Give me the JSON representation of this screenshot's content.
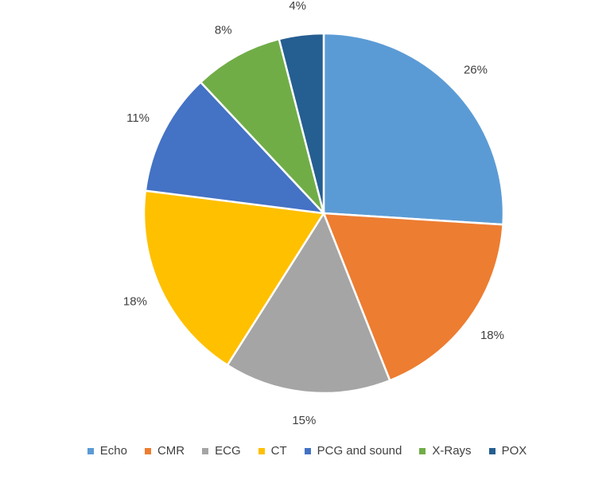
{
  "chart_data": {
    "type": "pie",
    "title": "",
    "legend_position": "bottom",
    "categories": [
      "Echo",
      "CMR",
      "ECG",
      "CT",
      "PCG and sound",
      "X-Rays",
      "POX"
    ],
    "values": [
      26,
      18,
      15,
      18,
      11,
      8,
      4
    ],
    "labels": [
      "26%",
      "18%",
      "15%",
      "18%",
      "11%",
      "8%",
      "4%"
    ],
    "colors": [
      "#5B9BD5",
      "#ED7D31",
      "#A5A5A5",
      "#FFC000",
      "#4472C4",
      "#70AD47",
      "#255E91"
    ]
  }
}
